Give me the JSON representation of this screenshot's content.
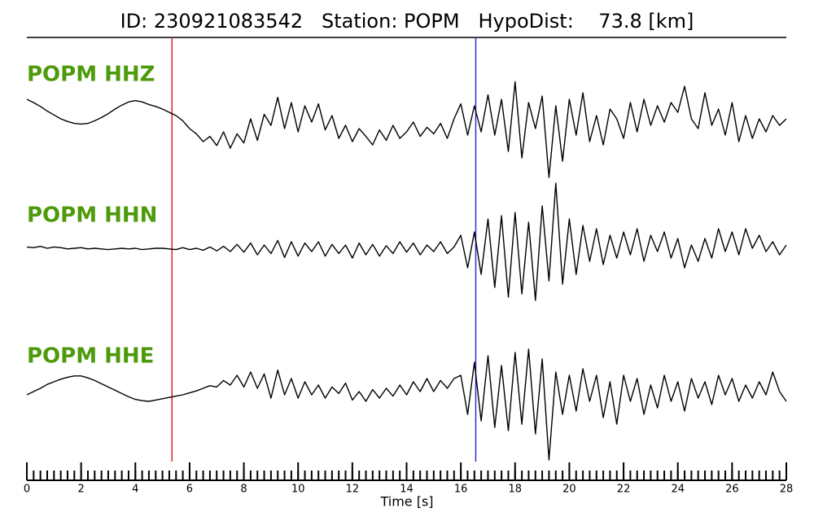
{
  "chart_data": {
    "type": "line",
    "title": "ID: 230921083542   Station: POPM   HypoDist:    73.8 [km]",
    "xlabel": "Time [s]",
    "xlim": [
      0,
      28
    ],
    "xticks": [
      0,
      2,
      4,
      6,
      8,
      10,
      12,
      14,
      16,
      18,
      20,
      22,
      24,
      26,
      28
    ],
    "xminorticks": [
      0,
      0.25,
      0.5,
      0.75,
      1,
      1.25,
      1.5,
      1.75,
      2,
      2.25,
      2.5,
      2.75,
      3,
      3.25,
      3.5,
      3.75,
      4,
      4.25,
      4.5,
      4.75,
      5,
      5.25,
      5.5,
      5.75,
      6,
      6.25,
      6.5,
      6.75,
      7,
      7.25,
      7.5,
      7.75,
      8,
      8.25,
      8.5,
      8.75,
      9,
      9.25,
      9.5,
      9.75,
      10,
      10.25,
      10.5,
      10.75,
      11,
      11.25,
      11.5,
      11.75,
      12,
      12.25,
      12.5,
      12.75,
      13,
      13.25,
      13.5,
      13.75,
      14,
      14.25,
      14.5,
      14.75,
      15,
      15.25,
      15.5,
      15.75,
      16,
      16.25,
      16.5,
      16.75,
      17,
      17.25,
      17.5,
      17.75,
      18,
      18.25,
      18.5,
      18.75,
      19,
      19.25,
      19.5,
      19.75,
      20,
      20.25,
      20.5,
      20.75,
      21,
      21.25,
      21.5,
      21.75,
      22,
      22.25,
      22.5,
      22.75,
      23,
      23.25,
      23.5,
      23.75,
      24,
      24.25,
      24.5,
      24.75,
      25,
      25.25,
      25.5,
      25.75,
      26,
      26.25,
      26.5,
      26.75,
      27,
      27.25,
      27.5,
      27.75,
      28
    ],
    "label_color": "#4d9a0a",
    "markers": [
      {
        "x": 5.35,
        "color": "#e0262a"
      },
      {
        "x": 16.55,
        "color": "#2a2ad8"
      }
    ],
    "x": [
      0,
      0.25,
      0.5,
      0.75,
      1,
      1.25,
      1.5,
      1.75,
      2,
      2.25,
      2.5,
      2.75,
      3,
      3.25,
      3.5,
      3.75,
      4,
      4.25,
      4.5,
      4.75,
      5,
      5.25,
      5.5,
      5.75,
      6,
      6.25,
      6.5,
      6.75,
      7,
      7.25,
      7.5,
      7.75,
      8,
      8.25,
      8.5,
      8.75,
      9,
      9.25,
      9.5,
      9.75,
      10,
      10.25,
      10.5,
      10.75,
      11,
      11.25,
      11.5,
      11.75,
      12,
      12.25,
      12.5,
      12.75,
      13,
      13.25,
      13.5,
      13.75,
      14,
      14.25,
      14.5,
      14.75,
      15,
      15.25,
      15.5,
      15.75,
      16,
      16.25,
      16.5,
      16.75,
      17,
      17.25,
      17.5,
      17.75,
      18,
      18.25,
      18.5,
      18.75,
      19,
      19.25,
      19.5,
      19.75,
      20,
      20.25,
      20.5,
      20.75,
      21,
      21.25,
      21.5,
      21.75,
      22,
      22.25,
      22.5,
      22.75,
      23,
      23.25,
      23.5,
      23.75,
      24,
      24.25,
      24.5,
      24.75,
      25,
      25.25,
      25.5,
      25.75,
      26,
      26.25,
      26.5,
      26.75,
      27,
      27.25,
      27.5,
      27.75,
      28
    ],
    "series": [
      {
        "name": "POPM HHZ",
        "color": "#000000",
        "values": [
          0.35,
          0.3,
          0.24,
          0.17,
          0.11,
          0.05,
          0.01,
          -0.02,
          -0.03,
          -0.02,
          0.02,
          0.07,
          0.13,
          0.2,
          0.26,
          0.31,
          0.33,
          0.31,
          0.27,
          0.24,
          0.2,
          0.15,
          0.1,
          0.02,
          -0.1,
          -0.18,
          -0.3,
          -0.22,
          -0.36,
          -0.15,
          -0.4,
          -0.18,
          -0.32,
          0.05,
          -0.28,
          0.12,
          -0.05,
          0.38,
          -0.1,
          0.3,
          -0.15,
          0.25,
          0.0,
          0.28,
          -0.12,
          0.1,
          -0.25,
          -0.05,
          -0.3,
          -0.1,
          -0.22,
          -0.35,
          -0.12,
          -0.28,
          -0.05,
          -0.25,
          -0.15,
          0.0,
          -0.22,
          -0.08,
          -0.18,
          -0.02,
          -0.25,
          0.05,
          0.28,
          -0.2,
          0.25,
          -0.15,
          0.42,
          -0.2,
          0.35,
          -0.45,
          0.62,
          -0.55,
          0.3,
          -0.1,
          0.4,
          -0.85,
          0.25,
          -0.6,
          0.35,
          -0.2,
          0.45,
          -0.3,
          0.1,
          -0.35,
          0.2,
          0.05,
          -0.25,
          0.3,
          -0.15,
          0.35,
          -0.05,
          0.25,
          0.0,
          0.3,
          0.15,
          0.55,
          0.05,
          -0.1,
          0.45,
          -0.05,
          0.2,
          -0.2,
          0.3,
          -0.3,
          0.1,
          -0.25,
          0.05,
          -0.15,
          0.1,
          -0.05,
          0.05
        ]
      },
      {
        "name": "POPM HHN",
        "color": "#000000",
        "values": [
          0.02,
          0.01,
          0.03,
          0.0,
          0.02,
          0.01,
          -0.01,
          0.0,
          0.01,
          -0.01,
          0.0,
          -0.01,
          -0.02,
          -0.01,
          0.0,
          -0.01,
          0.0,
          -0.02,
          -0.01,
          0.0,
          0.0,
          -0.01,
          -0.02,
          0.01,
          -0.02,
          0.0,
          -0.03,
          0.02,
          -0.04,
          0.03,
          -0.05,
          0.06,
          -0.06,
          0.08,
          -0.1,
          0.05,
          -0.08,
          0.12,
          -0.14,
          0.1,
          -0.12,
          0.08,
          -0.05,
          0.1,
          -0.12,
          0.06,
          -0.08,
          0.05,
          -0.15,
          0.08,
          -0.1,
          0.06,
          -0.12,
          0.04,
          -0.08,
          0.1,
          -0.06,
          0.08,
          -0.1,
          0.05,
          -0.05,
          0.1,
          -0.08,
          0.02,
          0.2,
          -0.3,
          0.25,
          -0.4,
          0.45,
          -0.6,
          0.5,
          -0.75,
          0.55,
          -0.7,
          0.4,
          -0.8,
          0.65,
          -0.5,
          1.0,
          -0.55,
          0.45,
          -0.4,
          0.35,
          -0.2,
          0.3,
          -0.25,
          0.2,
          -0.15,
          0.25,
          -0.1,
          0.3,
          -0.2,
          0.2,
          -0.05,
          0.25,
          -0.15,
          0.15,
          -0.3,
          0.05,
          -0.2,
          0.15,
          -0.15,
          0.3,
          -0.05,
          0.25,
          -0.1,
          0.3,
          0.0,
          0.2,
          -0.05,
          0.1,
          -0.1,
          0.05
        ]
      },
      {
        "name": "POPM HHE",
        "color": "#000000",
        "values": [
          0.0,
          0.05,
          0.1,
          0.16,
          0.2,
          0.24,
          0.27,
          0.29,
          0.29,
          0.26,
          0.22,
          0.17,
          0.12,
          0.07,
          0.02,
          -0.03,
          -0.07,
          -0.09,
          -0.1,
          -0.08,
          -0.06,
          -0.04,
          -0.02,
          0.0,
          0.03,
          0.06,
          0.1,
          0.14,
          0.12,
          0.22,
          0.15,
          0.3,
          0.12,
          0.35,
          0.1,
          0.32,
          -0.05,
          0.38,
          0.0,
          0.25,
          -0.05,
          0.2,
          0.0,
          0.15,
          -0.05,
          0.12,
          0.02,
          0.18,
          -0.08,
          0.05,
          -0.1,
          0.08,
          -0.05,
          0.1,
          -0.02,
          0.15,
          0.0,
          0.2,
          0.05,
          0.25,
          0.05,
          0.22,
          0.1,
          0.25,
          0.3,
          -0.3,
          0.5,
          -0.4,
          0.6,
          -0.5,
          0.45,
          -0.55,
          0.65,
          -0.45,
          0.7,
          -0.6,
          0.55,
          -1.0,
          0.35,
          -0.3,
          0.3,
          -0.25,
          0.4,
          -0.1,
          0.3,
          -0.35,
          0.2,
          -0.45,
          0.3,
          -0.1,
          0.25,
          -0.3,
          0.15,
          -0.2,
          0.3,
          -0.1,
          0.2,
          -0.25,
          0.25,
          -0.05,
          0.2,
          -0.15,
          0.3,
          0.0,
          0.25,
          -0.1,
          0.15,
          -0.05,
          0.2,
          0.0,
          0.35,
          0.05,
          -0.1
        ]
      }
    ]
  }
}
